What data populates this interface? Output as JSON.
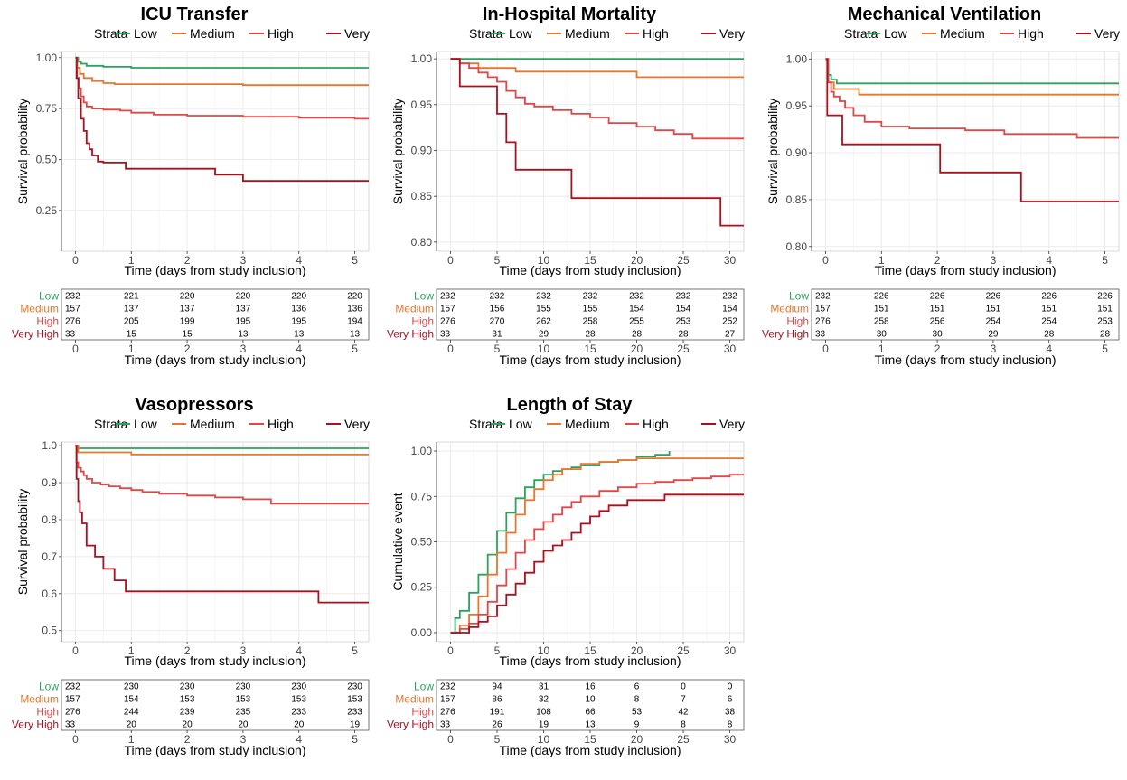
{
  "colors": {
    "Low": "#2ca25f",
    "Medium": "#e6772e",
    "High": "#e04848",
    "Very High": "#a8111d"
  },
  "legend_title": "Strata",
  "strata": [
    "Low",
    "Medium",
    "High",
    "Very High"
  ],
  "chart_data": [
    {
      "type": "line",
      "step": true,
      "title": "ICU Transfer",
      "xlabel": "Time (days from study inclusion)",
      "ylabel": "Survival probability",
      "xlim": [
        -0.25,
        5.25
      ],
      "ylim": [
        0.05,
        1.03
      ],
      "xticks": [
        0,
        1,
        2,
        3,
        4,
        5
      ],
      "yticks": [
        0.25,
        0.5,
        0.75,
        1.0
      ],
      "ytick_labels": [
        "0.25",
        "0.50",
        "0.75",
        "1.00"
      ],
      "grid": true,
      "legend": "top",
      "series": [
        {
          "name": "Low",
          "x": [
            0,
            0.05,
            0.1,
            0.2,
            0.5,
            1.0,
            5.25
          ],
          "y": [
            1.0,
            0.98,
            0.97,
            0.96,
            0.955,
            0.95,
            0.95
          ]
        },
        {
          "name": "Medium",
          "x": [
            0,
            0.03,
            0.08,
            0.15,
            0.3,
            0.5,
            0.7,
            3.0,
            5.25
          ],
          "y": [
            1.0,
            0.95,
            0.92,
            0.9,
            0.885,
            0.875,
            0.87,
            0.865,
            0.865
          ]
        },
        {
          "name": "High",
          "x": [
            0,
            0.03,
            0.06,
            0.1,
            0.15,
            0.2,
            0.3,
            0.5,
            0.8,
            1.0,
            1.4,
            2.0,
            3.0,
            4.0,
            5.0,
            5.25
          ],
          "y": [
            1.0,
            0.9,
            0.85,
            0.81,
            0.78,
            0.76,
            0.75,
            0.745,
            0.74,
            0.73,
            0.72,
            0.715,
            0.71,
            0.705,
            0.7,
            0.7
          ]
        },
        {
          "name": "Very High",
          "x": [
            0,
            0.02,
            0.05,
            0.1,
            0.15,
            0.2,
            0.25,
            0.3,
            0.4,
            0.5,
            0.9,
            2.5,
            3.0,
            5.25
          ],
          "y": [
            1.0,
            0.9,
            0.8,
            0.7,
            0.64,
            0.58,
            0.55,
            0.52,
            0.49,
            0.485,
            0.455,
            0.425,
            0.395,
            0.395
          ]
        }
      ],
      "risk_xticks": [
        0,
        1,
        2,
        3,
        4,
        5
      ],
      "risk_rows": [
        {
          "label": "Low",
          "values": [
            "232",
            "221",
            "220",
            "220",
            "220",
            "220"
          ]
        },
        {
          "label": "Medium",
          "values": [
            "157",
            "137",
            "137",
            "137",
            "136",
            "136"
          ]
        },
        {
          "label": "High",
          "values": [
            "276",
            "205",
            "199",
            "195",
            "195",
            "194"
          ]
        },
        {
          "label": "Very High",
          "values": [
            "33",
            "15",
            "15",
            "13",
            "13",
            "13"
          ]
        }
      ]
    },
    {
      "type": "line",
      "step": true,
      "title": "In-Hospital Mortality",
      "xlabel": "Time (days from study inclusion)",
      "ylabel": "Survival probability",
      "xlim": [
        -1.5,
        31.5
      ],
      "ylim": [
        0.79,
        1.008
      ],
      "xticks": [
        0,
        5,
        10,
        15,
        20,
        25,
        30
      ],
      "yticks": [
        0.8,
        0.85,
        0.9,
        0.95,
        1.0
      ],
      "ytick_labels": [
        "0.80",
        "0.85",
        "0.90",
        "0.95",
        "1.00"
      ],
      "grid": true,
      "legend": "top",
      "series": [
        {
          "name": "Low",
          "x": [
            0,
            31.5
          ],
          "y": [
            1.0,
            1.0
          ]
        },
        {
          "name": "Medium",
          "x": [
            0,
            1,
            3,
            7,
            20,
            31.5
          ],
          "y": [
            1.0,
            0.995,
            0.99,
            0.986,
            0.98,
            0.98
          ]
        },
        {
          "name": "High",
          "x": [
            0,
            1,
            2,
            3,
            4,
            5,
            6,
            7,
            8,
            9,
            11,
            13,
            15,
            17,
            20,
            22,
            24,
            26,
            31.5
          ],
          "y": [
            1.0,
            0.995,
            0.99,
            0.985,
            0.98,
            0.975,
            0.965,
            0.958,
            0.951,
            0.948,
            0.944,
            0.94,
            0.936,
            0.93,
            0.926,
            0.922,
            0.918,
            0.913,
            0.913
          ]
        },
        {
          "name": "Very High",
          "x": [
            0,
            1,
            5,
            6,
            7,
            13,
            29,
            31.5
          ],
          "y": [
            1.0,
            0.97,
            0.94,
            0.909,
            0.879,
            0.848,
            0.818,
            0.818
          ]
        }
      ],
      "risk_xticks": [
        0,
        5,
        10,
        15,
        20,
        25,
        30
      ],
      "risk_rows": [
        {
          "label": "Low",
          "values": [
            "232",
            "232",
            "232",
            "232",
            "232",
            "232",
            "232"
          ]
        },
        {
          "label": "Medium",
          "values": [
            "157",
            "156",
            "155",
            "155",
            "154",
            "154",
            "154"
          ]
        },
        {
          "label": "High",
          "values": [
            "276",
            "270",
            "262",
            "258",
            "255",
            "253",
            "252"
          ]
        },
        {
          "label": "Very High",
          "values": [
            "33",
            "31",
            "29",
            "28",
            "28",
            "28",
            "27"
          ]
        }
      ]
    },
    {
      "type": "line",
      "step": true,
      "title": "Mechanical Ventilation",
      "xlabel": "Time (days from study inclusion)",
      "ylabel": "Survival probability",
      "xlim": [
        -0.25,
        5.25
      ],
      "ylim": [
        0.795,
        1.008
      ],
      "xticks": [
        0,
        1,
        2,
        3,
        4,
        5
      ],
      "yticks": [
        0.8,
        0.85,
        0.9,
        0.95,
        1.0
      ],
      "ytick_labels": [
        "0.80",
        "0.85",
        "0.90",
        "0.95",
        "1.00"
      ],
      "grid": true,
      "legend": "top",
      "series": [
        {
          "name": "Low",
          "x": [
            0,
            0.05,
            0.1,
            0.2,
            5.25
          ],
          "y": [
            1.0,
            0.983,
            0.978,
            0.974,
            0.974
          ]
        },
        {
          "name": "Medium",
          "x": [
            0,
            0.05,
            0.15,
            0.6,
            5.25
          ],
          "y": [
            1.0,
            0.975,
            0.968,
            0.962,
            0.962
          ]
        },
        {
          "name": "High",
          "x": [
            0,
            0.05,
            0.1,
            0.15,
            0.25,
            0.35,
            0.5,
            0.7,
            1.0,
            1.5,
            2.5,
            3.2,
            4.5,
            5.25
          ],
          "y": [
            1.0,
            0.975,
            0.965,
            0.96,
            0.955,
            0.948,
            0.94,
            0.933,
            0.928,
            0.926,
            0.924,
            0.92,
            0.916,
            0.916
          ]
        },
        {
          "name": "Very High",
          "x": [
            0,
            0.03,
            0.3,
            2.05,
            3.5,
            5.25
          ],
          "y": [
            1.0,
            0.94,
            0.909,
            0.879,
            0.848,
            0.848
          ]
        }
      ],
      "risk_xticks": [
        0,
        1,
        2,
        3,
        4,
        5
      ],
      "risk_rows": [
        {
          "label": "Low",
          "values": [
            "232",
            "226",
            "226",
            "226",
            "226",
            "226"
          ]
        },
        {
          "label": "Medium",
          "values": [
            "157",
            "151",
            "151",
            "151",
            "151",
            "151"
          ]
        },
        {
          "label": "High",
          "values": [
            "276",
            "258",
            "256",
            "254",
            "254",
            "253"
          ]
        },
        {
          "label": "Very High",
          "values": [
            "33",
            "30",
            "30",
            "29",
            "28",
            "28"
          ]
        }
      ]
    },
    {
      "type": "line",
      "step": true,
      "title": "Vasopressors",
      "xlabel": "Time (days from study inclusion)",
      "ylabel": "Survival probability",
      "xlim": [
        -0.25,
        5.25
      ],
      "ylim": [
        0.47,
        1.01
      ],
      "xticks": [
        0,
        1,
        2,
        3,
        4,
        5
      ],
      "yticks": [
        0.5,
        0.6,
        0.7,
        0.8,
        0.9,
        1.0
      ],
      "ytick_labels": [
        "0.5",
        "0.6",
        "0.7",
        "0.8",
        "0.9",
        "1.0"
      ],
      "grid": true,
      "legend": "top",
      "series": [
        {
          "name": "Low",
          "x": [
            0,
            0.05,
            5.25
          ],
          "y": [
            1.0,
            0.993,
            0.993
          ]
        },
        {
          "name": "Medium",
          "x": [
            0,
            0.05,
            1.0,
            5.25
          ],
          "y": [
            1.0,
            0.982,
            0.976,
            0.976
          ]
        },
        {
          "name": "High",
          "x": [
            0,
            0.02,
            0.05,
            0.1,
            0.15,
            0.2,
            0.3,
            0.45,
            0.6,
            0.8,
            1.0,
            1.2,
            1.5,
            2.0,
            2.5,
            3.0,
            3.5,
            5.25
          ],
          "y": [
            1.0,
            0.955,
            0.94,
            0.93,
            0.92,
            0.91,
            0.9,
            0.895,
            0.89,
            0.885,
            0.88,
            0.875,
            0.87,
            0.865,
            0.86,
            0.855,
            0.843,
            0.843
          ]
        },
        {
          "name": "Very High",
          "x": [
            0,
            0.02,
            0.05,
            0.08,
            0.12,
            0.2,
            0.35,
            0.5,
            0.7,
            0.9,
            4.35,
            5.25
          ],
          "y": [
            1.0,
            0.91,
            0.85,
            0.82,
            0.79,
            0.73,
            0.7,
            0.667,
            0.636,
            0.606,
            0.576,
            0.576
          ]
        }
      ],
      "risk_xticks": [
        0,
        1,
        2,
        3,
        4,
        5
      ],
      "risk_rows": [
        {
          "label": "Low",
          "values": [
            "232",
            "230",
            "230",
            "230",
            "230",
            "230"
          ]
        },
        {
          "label": "Medium",
          "values": [
            "157",
            "154",
            "153",
            "153",
            "153",
            "153"
          ]
        },
        {
          "label": "High",
          "values": [
            "276",
            "244",
            "239",
            "235",
            "233",
            "233"
          ]
        },
        {
          "label": "Very High",
          "values": [
            "33",
            "20",
            "20",
            "20",
            "20",
            "19"
          ]
        }
      ]
    },
    {
      "type": "line",
      "step": true,
      "title": "Length of Stay",
      "xlabel": "Time (days from study inclusion)",
      "ylabel": "Cumulative event",
      "xlim": [
        -1.5,
        31.5
      ],
      "ylim": [
        -0.05,
        1.05
      ],
      "xticks": [
        0,
        5,
        10,
        15,
        20,
        25,
        30
      ],
      "yticks": [
        0.0,
        0.25,
        0.5,
        0.75,
        1.0
      ],
      "ytick_labels": [
        "0.00",
        "0.25",
        "0.50",
        "0.75",
        "1.00"
      ],
      "grid": true,
      "legend": "top",
      "series": [
        {
          "name": "Low",
          "x": [
            0,
            0.5,
            1,
            2,
            3,
            4,
            5,
            6,
            7,
            8,
            9,
            10,
            11,
            12,
            13,
            14,
            16,
            18,
            20,
            22,
            23.5
          ],
          "y": [
            0.0,
            0.08,
            0.12,
            0.22,
            0.32,
            0.43,
            0.56,
            0.66,
            0.74,
            0.8,
            0.84,
            0.87,
            0.89,
            0.9,
            0.91,
            0.92,
            0.94,
            0.95,
            0.97,
            0.98,
            1.0
          ]
        },
        {
          "name": "Medium",
          "x": [
            0,
            1,
            2,
            3,
            4,
            5,
            6,
            7,
            8,
            9,
            10,
            11,
            12,
            14,
            16,
            18,
            20,
            31.5
          ],
          "y": [
            0.0,
            0.04,
            0.1,
            0.2,
            0.32,
            0.44,
            0.55,
            0.65,
            0.73,
            0.79,
            0.84,
            0.87,
            0.9,
            0.93,
            0.94,
            0.95,
            0.96,
            0.96
          ]
        },
        {
          "name": "High",
          "x": [
            0,
            1,
            2,
            3,
            4,
            5,
            6,
            7,
            8,
            9,
            10,
            11,
            12,
            13,
            14,
            16,
            18,
            20,
            22,
            24,
            26,
            28,
            30,
            31.5
          ],
          "y": [
            0.0,
            0.02,
            0.05,
            0.1,
            0.17,
            0.26,
            0.35,
            0.44,
            0.51,
            0.57,
            0.61,
            0.65,
            0.69,
            0.72,
            0.75,
            0.78,
            0.8,
            0.82,
            0.83,
            0.84,
            0.85,
            0.86,
            0.87,
            0.87
          ]
        },
        {
          "name": "Very High",
          "x": [
            0,
            2,
            3,
            4,
            5,
            6,
            7,
            8,
            9,
            10,
            11,
            12,
            13,
            14,
            15,
            16,
            17,
            19,
            21,
            23,
            31.5
          ],
          "y": [
            0.0,
            0.03,
            0.06,
            0.09,
            0.15,
            0.21,
            0.27,
            0.33,
            0.39,
            0.45,
            0.48,
            0.51,
            0.55,
            0.6,
            0.64,
            0.67,
            0.7,
            0.73,
            0.73,
            0.76,
            0.76
          ]
        }
      ],
      "risk_xticks": [
        0,
        5,
        10,
        15,
        20,
        25,
        30
      ],
      "risk_rows": [
        {
          "label": "Low",
          "values": [
            "232",
            "94",
            "31",
            "16",
            "6",
            "0",
            "0"
          ]
        },
        {
          "label": "Medium",
          "values": [
            "157",
            "86",
            "32",
            "10",
            "8",
            "7",
            "6"
          ]
        },
        {
          "label": "High",
          "values": [
            "276",
            "191",
            "108",
            "66",
            "53",
            "42",
            "38"
          ]
        },
        {
          "label": "Very High",
          "values": [
            "33",
            "26",
            "19",
            "13",
            "9",
            "8",
            "8"
          ]
        }
      ]
    }
  ]
}
